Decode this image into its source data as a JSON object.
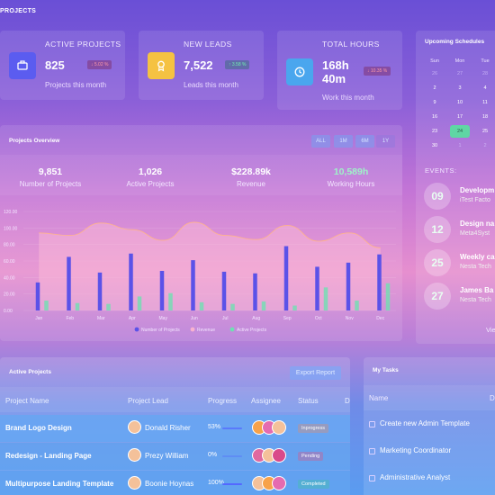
{
  "page_title": "PROJECTS",
  "stats": [
    {
      "title": "ACTIVE PROJECTS",
      "value": "825",
      "change": "↓ 5.02 %",
      "direction": "down",
      "subtitle": "Projects this month",
      "icon": "briefcase-icon",
      "icon_bg": "#5b5cf0"
    },
    {
      "title": "NEW LEADS",
      "value": "7,522",
      "change": "↑ 3.58 %",
      "direction": "up",
      "subtitle": "Leads this month",
      "icon": "award-icon",
      "icon_bg": "#f5c242"
    },
    {
      "title": "TOTAL HOURS",
      "value_line1": "168h",
      "value_line2": "40m",
      "change": "↓ 10.35 %",
      "direction": "down",
      "subtitle": "Work this month",
      "icon": "clock-icon",
      "icon_bg": "#4aa6ee"
    }
  ],
  "schedule": {
    "title": "Upcoming Schedules",
    "weekdays": [
      "Sun",
      "Mon",
      "Tue"
    ],
    "weeks": [
      [
        {
          "n": "26",
          "dim": true
        },
        {
          "n": "27",
          "dim": true
        },
        {
          "n": "28",
          "dim": true
        }
      ],
      [
        {
          "n": "2"
        },
        {
          "n": "3"
        },
        {
          "n": "4"
        }
      ],
      [
        {
          "n": "9"
        },
        {
          "n": "10"
        },
        {
          "n": "11"
        }
      ],
      [
        {
          "n": "16"
        },
        {
          "n": "17"
        },
        {
          "n": "18"
        }
      ],
      [
        {
          "n": "23"
        },
        {
          "n": "24"
        },
        {
          "n": "25"
        }
      ],
      [
        {
          "n": "30"
        },
        {
          "n": "1",
          "dim": true
        },
        {
          "n": "2",
          "dim": true
        }
      ]
    ],
    "selected": "24"
  },
  "events": {
    "title": "EVENTS:",
    "items": [
      {
        "day": "09",
        "title": "Developm",
        "subtitle": "iTest Facto"
      },
      {
        "day": "12",
        "title": "Design na",
        "subtitle": "Meta4Syst"
      },
      {
        "day": "25",
        "title": "Weekly ca",
        "subtitle": "Nesta Tech"
      },
      {
        "day": "27",
        "title": "James Ba",
        "subtitle": "Nesta Tech"
      }
    ],
    "view_link": "Vie"
  },
  "overview": {
    "title": "Projects Overview",
    "periods": [
      "ALL",
      "1M",
      "6M",
      "1Y"
    ],
    "active_period": "1Y",
    "metrics": [
      {
        "value": "9,851",
        "label": "Number of Projects"
      },
      {
        "value": "1,026",
        "label": "Active Projects"
      },
      {
        "value": "$228.89k",
        "label": "Revenue"
      },
      {
        "value": "10,589h",
        "label": "Working Hours"
      }
    ]
  },
  "chart_data": {
    "type": "bar",
    "categories": [
      "Jan",
      "Feb",
      "Mar",
      "Apr",
      "May",
      "Jun",
      "Jul",
      "Aug",
      "Sep",
      "Oct",
      "Nov",
      "Dec"
    ],
    "ylim": [
      0,
      120
    ],
    "y_ticks": [
      "0.00",
      "20.00",
      "40.00",
      "60.00",
      "80.00",
      "100.00",
      "120.00"
    ],
    "series": [
      {
        "name": "Number of Projects",
        "type": "bar",
        "color": "#5b52e8",
        "values": [
          34,
          65,
          46,
          69,
          48,
          61,
          47,
          45,
          78,
          53,
          58,
          68
        ]
      },
      {
        "name": "Revenue",
        "type": "area",
        "color": "#f9b2cf",
        "values": [
          94,
          91,
          106,
          98,
          85,
          107,
          91,
          86,
          103,
          84,
          94,
          76
        ]
      },
      {
        "name": "Active Projects",
        "type": "bar",
        "color": "#6fe0b2",
        "values": [
          12,
          9,
          8,
          17,
          21,
          10,
          8,
          11,
          6,
          28,
          12,
          33
        ]
      }
    ],
    "legend": "bottom"
  },
  "active_projects": {
    "title": "Active Projects",
    "export_label": "Export Report",
    "columns": [
      "Project Name",
      "Project Lead",
      "Progress",
      "Assignee",
      "Status",
      "D"
    ],
    "rows": [
      {
        "name": "Brand Logo Design",
        "lead": "Donald Risher",
        "progress": "53%",
        "progress_value": 0.53,
        "status": "Inprogress",
        "status_color": "#f08a5d"
      },
      {
        "name": "Redesign - Landing Page",
        "lead": "Prezy William",
        "progress": "0%",
        "progress_value": 0.0,
        "status": "Pending",
        "status_color": "#e84d7b"
      },
      {
        "name": "Multipurpose Landing Template",
        "lead": "Boonie Hoynas",
        "progress": "100%",
        "progress_value": 1.0,
        "status": "Completed",
        "status_color": "#3cc99a"
      }
    ]
  },
  "tasks": {
    "title": "My Tasks",
    "columns": [
      "Name",
      "D"
    ],
    "items": [
      "Create new Admin Template",
      "Marketing Coordinator",
      "Administrative Analyst"
    ]
  }
}
